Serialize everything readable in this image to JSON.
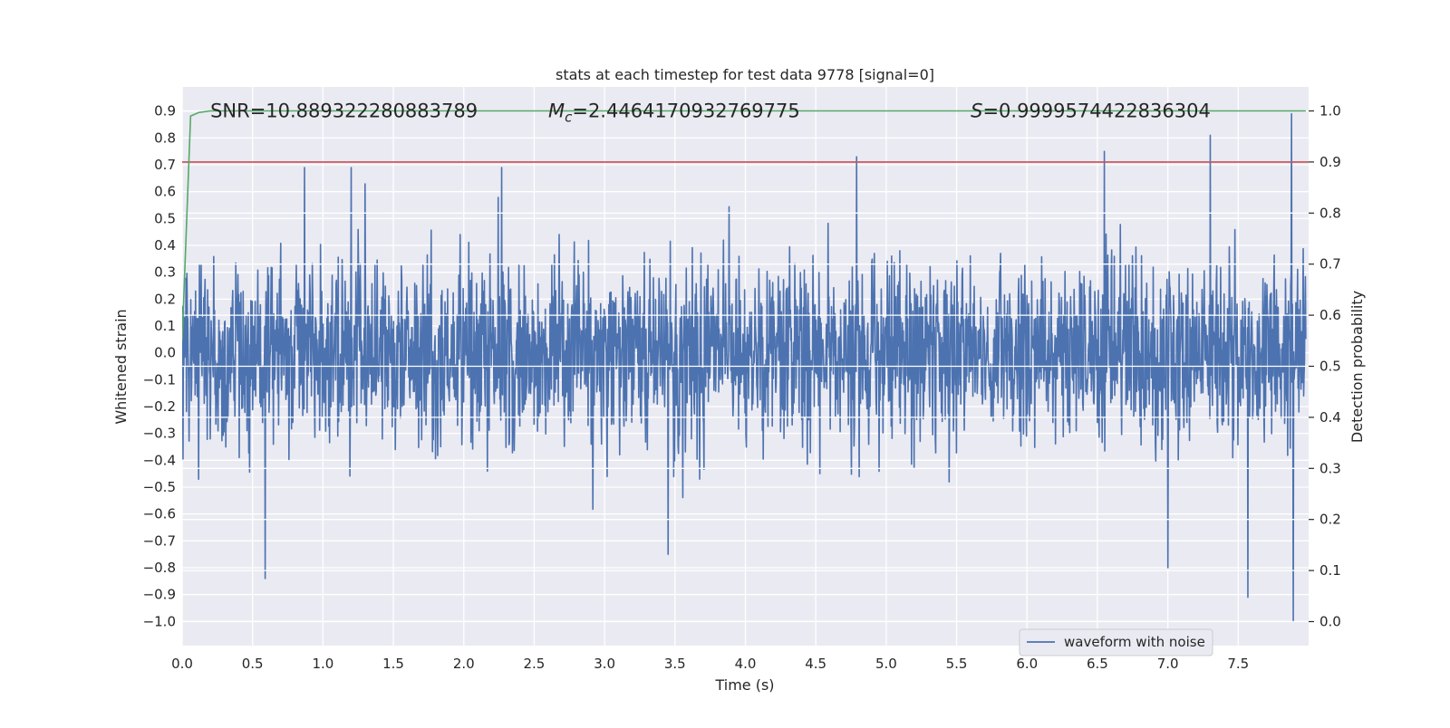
{
  "chart_data": {
    "type": "line",
    "title": "stats at each timestep for test data 9778 [signal=0]",
    "xlabel": "Time (s)",
    "ylabel": "Whitened strain",
    "y2label": "Detection probability",
    "xlim": [
      0.0,
      8.0
    ],
    "ylim": [
      -1.09,
      0.99
    ],
    "y2lim": [
      -0.047,
      1.047
    ],
    "xticks": [
      0.0,
      0.5,
      1.0,
      1.5,
      2.0,
      2.5,
      3.0,
      3.5,
      4.0,
      4.5,
      5.0,
      5.5,
      6.0,
      6.5,
      7.0,
      7.5
    ],
    "xtick_labels": [
      "0.0",
      "0.5",
      "1.0",
      "1.5",
      "2.0",
      "2.5",
      "3.0",
      "3.5",
      "4.0",
      "4.5",
      "5.0",
      "5.5",
      "6.0",
      "6.5",
      "7.0",
      "7.5"
    ],
    "yticks": [
      -1.0,
      -0.9,
      -0.8,
      -0.7,
      -0.6,
      -0.5,
      -0.4,
      -0.3,
      -0.2,
      -0.1,
      0.0,
      0.1,
      0.2,
      0.3,
      0.4,
      0.5,
      0.6,
      0.7,
      0.8,
      0.9
    ],
    "ytick_labels": [
      "−1.0",
      "−0.9",
      "−0.8",
      "−0.7",
      "−0.6",
      "−0.5",
      "−0.4",
      "−0.3",
      "−0.2",
      "−0.1",
      "0.0",
      "0.1",
      "0.2",
      "0.3",
      "0.4",
      "0.5",
      "0.6",
      "0.7",
      "0.8",
      "0.9"
    ],
    "y2ticks": [
      0.0,
      0.1,
      0.2,
      0.3,
      0.4,
      0.5,
      0.6,
      0.7,
      0.8,
      0.9,
      1.0
    ],
    "y2tick_labels": [
      "0.0",
      "0.1",
      "0.2",
      "0.3",
      "0.4",
      "0.5",
      "0.6",
      "0.7",
      "0.8",
      "0.9",
      "1.0"
    ],
    "grid": true,
    "legend_position": "lower-right",
    "series": [
      {
        "name": "waveform with noise",
        "axis": "left",
        "color": "#4c72b0",
        "x_range": [
          0.0,
          7.98
        ],
        "approx_envelope": {
          "typical_upper": [
            0.35,
            0.5
          ],
          "typical_lower": [
            -0.45,
            -0.3
          ],
          "peak_max": 0.89,
          "peak_min": -1.0
        },
        "notable_peaks": [
          {
            "x": 0.87,
            "y": 0.69
          },
          {
            "x": 1.2,
            "y": 0.69
          },
          {
            "x": 2.27,
            "y": 0.69
          },
          {
            "x": 4.79,
            "y": 0.73
          },
          {
            "x": 6.55,
            "y": 0.75
          },
          {
            "x": 7.3,
            "y": 0.81
          },
          {
            "x": 7.88,
            "y": 0.89
          }
        ],
        "notable_troughs": [
          {
            "x": 0.59,
            "y": -0.84
          },
          {
            "x": 3.45,
            "y": -0.75
          },
          {
            "x": 7.0,
            "y": -0.8
          },
          {
            "x": 7.57,
            "y": -0.91
          },
          {
            "x": 7.89,
            "y": -1.0
          }
        ]
      },
      {
        "axis": "right",
        "color": "#55a868",
        "x": [
          0.0,
          0.06,
          0.12,
          0.2,
          0.5,
          1.0,
          2.0,
          3.0,
          4.0,
          5.0,
          6.0,
          7.0,
          7.98
        ],
        "y": [
          0.55,
          0.99,
          0.997,
          1.0,
          1.0,
          1.0,
          1.0,
          1.0,
          1.0,
          1.0,
          1.0,
          1.0,
          1.0
        ]
      },
      {
        "axis": "right",
        "color": "#c44e52",
        "x": [
          0.0,
          8.0
        ],
        "y": [
          0.9,
          0.9
        ]
      }
    ],
    "annotations": [
      {
        "x": 0.2,
        "text_prefix": "SNR=",
        "value": "10.889322280883789"
      },
      {
        "x": 2.6,
        "text_prefix": "Mc",
        "value": "=2.4464170932769775"
      },
      {
        "x": 5.6,
        "text_prefix": "S",
        "value": "=0.9999574422836304"
      }
    ],
    "annotation_y": 0.9,
    "legend_label": "waveform with noise",
    "colors": {
      "background": "#eaeaf2",
      "grid": "#ffffff",
      "waveform": "#4c72b0",
      "probability": "#55a868",
      "threshold": "#c44e52"
    }
  }
}
